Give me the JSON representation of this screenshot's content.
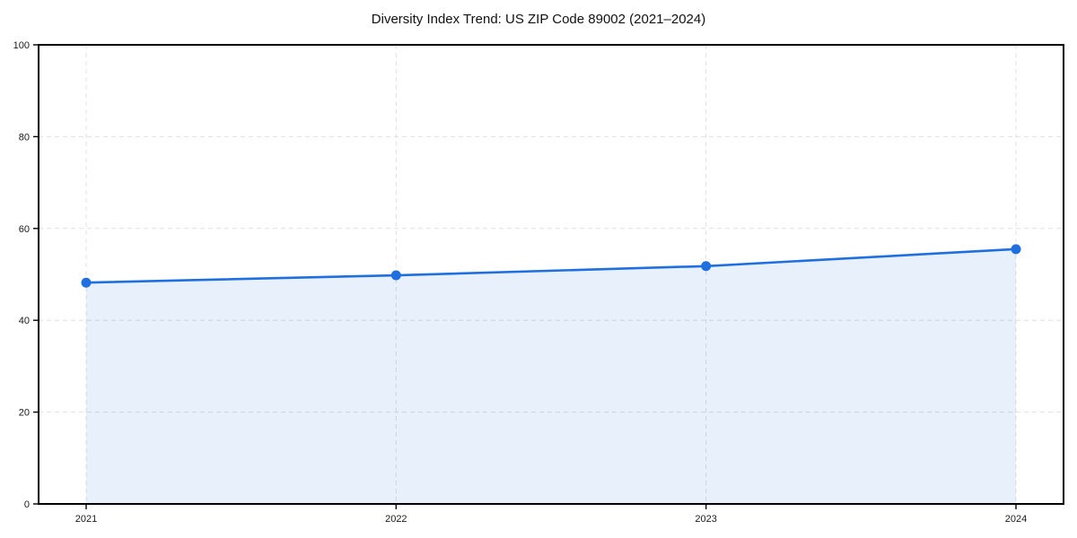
{
  "chart_data": {
    "type": "area",
    "title": "Diversity Index Trend: US ZIP Code 89002 (2021–2024)",
    "categories": [
      "2021",
      "2022",
      "2023",
      "2024"
    ],
    "x": [
      2021,
      2022,
      2023,
      2024
    ],
    "series": [
      {
        "name": "Diversity Index",
        "values": [
          48.2,
          49.8,
          51.8,
          55.5
        ]
      }
    ],
    "xlabel": "",
    "ylabel": "",
    "ylim": [
      0,
      100
    ],
    "yticks": [
      0,
      20,
      40,
      60,
      80,
      100
    ],
    "grid": "dashed-both-axes",
    "legend": "none",
    "marker": "circle",
    "colors": {
      "line": "#1f6fe0",
      "marker": "#1f6fe0",
      "fill": "#1f6fe0",
      "fill_opacity": 0.1,
      "gridline": "#e0e0e0",
      "spine": "#000000",
      "tick_label": "#1a1a1a",
      "title": "#111111",
      "background": "#ffffff"
    }
  }
}
